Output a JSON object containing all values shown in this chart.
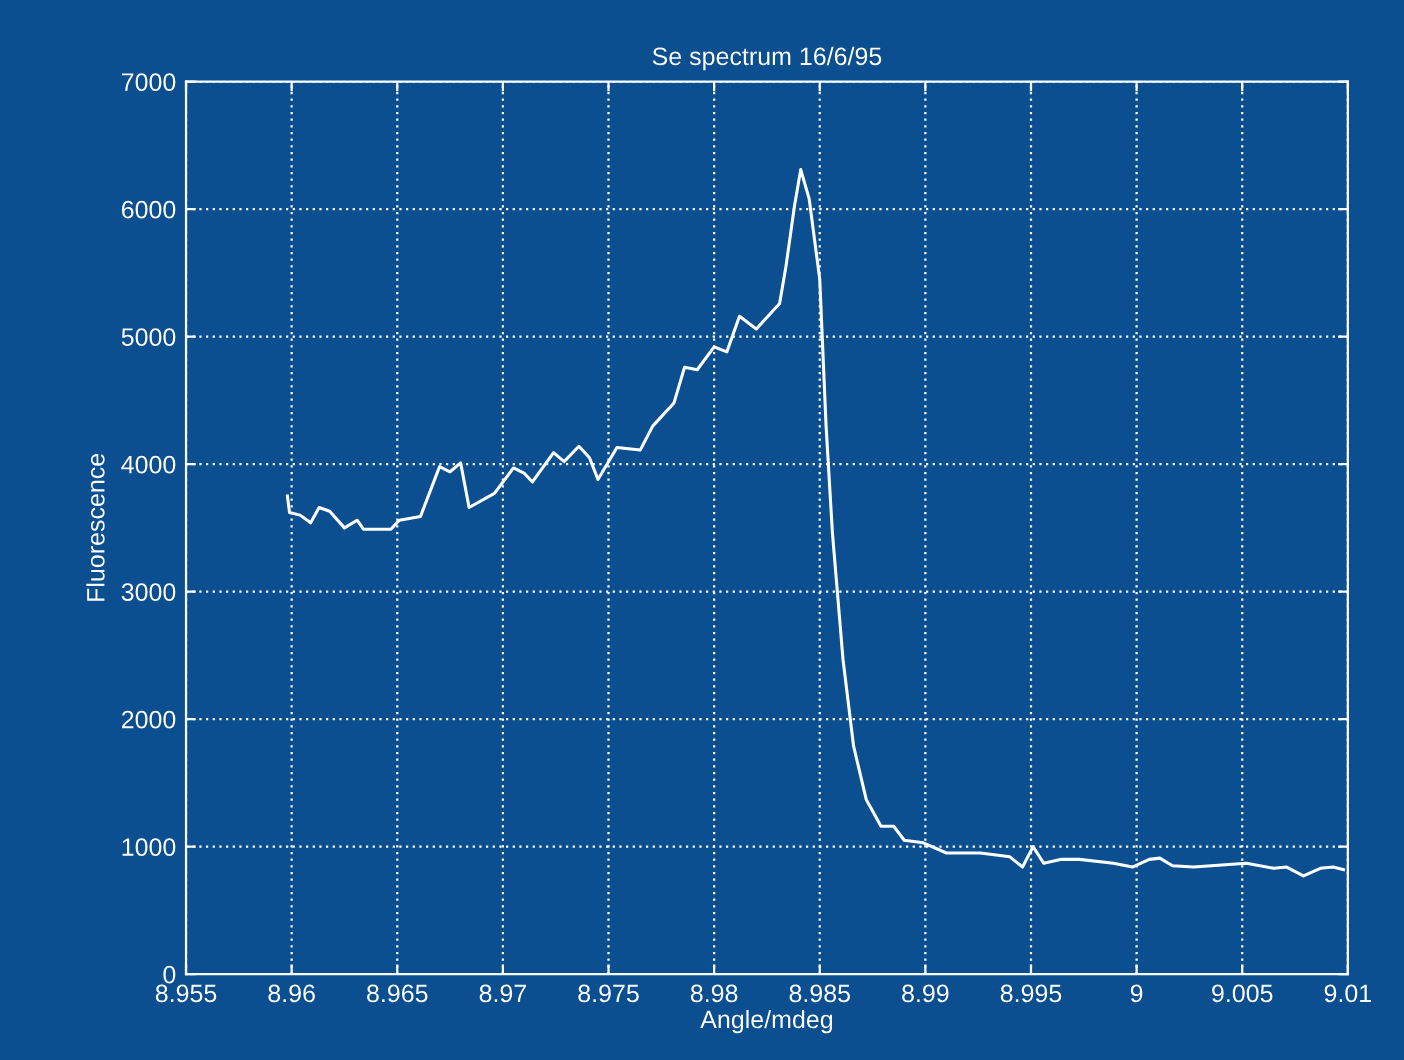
{
  "chart_data": {
    "type": "line",
    "title": "Se spectrum 16/6/95",
    "xlabel": "Angle/mdeg",
    "ylabel": "Fluorescence",
    "xlim": [
      8.955,
      9.01
    ],
    "xticks": [
      8.955,
      8.96,
      8.965,
      8.97,
      8.975,
      8.98,
      8.985,
      8.99,
      8.995,
      9,
      9.005,
      9.01
    ],
    "ylim": [
      0,
      7000
    ],
    "yticks": [
      0,
      1000,
      2000,
      3000,
      4000,
      5000,
      6000,
      7000
    ],
    "grid": true,
    "marker": "none",
    "line_style": "solid",
    "series": [
      {
        "color": "#ffffff",
        "x": [
          8.9598,
          8.9599,
          8.9604,
          8.9609,
          8.9613,
          8.9618,
          8.9625,
          8.9631,
          8.9634,
          8.9647,
          8.9651,
          8.9661,
          8.967,
          8.9675,
          8.968,
          8.9684,
          8.9696,
          8.9705,
          8.971,
          8.9714,
          8.9724,
          8.9729,
          8.9736,
          8.9741,
          8.9745,
          8.9754,
          8.9765,
          8.9771,
          8.9781,
          8.9786,
          8.9792,
          8.98,
          8.9806,
          8.9812,
          8.982,
          8.9831,
          8.9834,
          8.9838,
          8.9841,
          8.9845,
          8.985,
          8.9853,
          8.9856,
          8.9861,
          8.9866,
          8.9872,
          8.9879,
          8.9885,
          8.989,
          8.9899,
          8.991,
          8.9926,
          8.994,
          8.9946,
          8.9951,
          8.9956,
          8.9964,
          8.9973,
          8.9989,
          8.9998,
          9.0006,
          9.0011,
          9.0017,
          9.0027,
          9.0052,
          9.0065,
          9.0071,
          9.0079,
          9.0087,
          9.0093,
          9.0098
        ],
        "values": [
          3750,
          3620,
          3600,
          3540,
          3660,
          3630,
          3500,
          3560,
          3490,
          3490,
          3560,
          3590,
          3980,
          3940,
          4010,
          3660,
          3770,
          3970,
          3930,
          3860,
          4090,
          4020,
          4140,
          4050,
          3880,
          4130,
          4110,
          4300,
          4480,
          4760,
          4740,
          4920,
          4880,
          5160,
          5060,
          5260,
          5550,
          6020,
          6310,
          6080,
          5450,
          4300,
          3460,
          2470,
          1790,
          1370,
          1160,
          1160,
          1050,
          1030,
          950,
          950,
          920,
          840,
          1000,
          870,
          900,
          900,
          870,
          840,
          900,
          910,
          850,
          840,
          870,
          830,
          840,
          770,
          830,
          840,
          820
        ]
      }
    ]
  }
}
